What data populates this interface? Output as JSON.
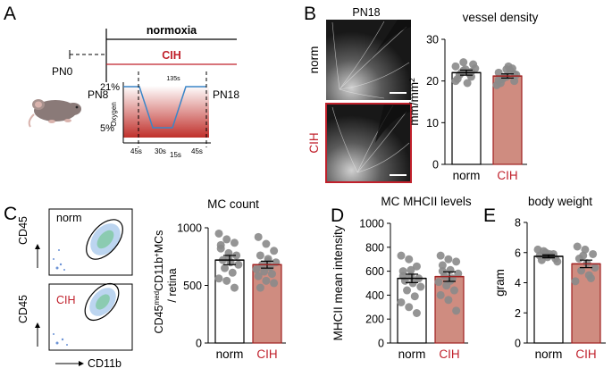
{
  "colors": {
    "norm_bar": "#ffffff",
    "cih_bar": "#cf8c80",
    "cih_text": "#c0202b",
    "point": "#8a8a8a",
    "oxygen_line": "#3a86c8",
    "gradient_top": "#ffffff",
    "gradient_bottom": "#c0302b"
  },
  "panels": {
    "A": {
      "letter": "A",
      "normoxia": "normoxia",
      "cih": "CIH",
      "pn0": "PN0",
      "pn8": "PN8",
      "pn18": "PN18",
      "oxygen_label": "Oxygen",
      "o2_high": "21%",
      "o2_low": "5%",
      "t_total": "135s",
      "t1": "45s",
      "t2": "30s",
      "t3": "15s",
      "t4": "45s",
      "mouse_icon": "mouse-icon"
    },
    "B": {
      "letter": "B",
      "image_title": "PN18",
      "norm_label": "norm",
      "cih_label": "CIH"
    },
    "C": {
      "letter": "C",
      "flow_top_label": "norm",
      "flow_bottom_label": "CIH",
      "cd45": "CD45",
      "cd11b": "CD11b"
    },
    "D": {
      "letter": "D"
    },
    "E": {
      "letter": "E"
    }
  },
  "chart_data": [
    {
      "id": "vessel-density",
      "type": "bar",
      "title": "vessel density",
      "ylabel": "mm/mm²",
      "categories": [
        "norm",
        "CIH"
      ],
      "values": [
        22.0,
        21.2
      ],
      "sem": [
        0.6,
        0.5
      ],
      "ylim": [
        0,
        30
      ],
      "yticks": [
        0,
        10,
        20,
        30
      ],
      "points": [
        [
          23.5,
          22.5,
          21.0,
          20.5,
          22.8,
          24.0,
          21.5,
          19.5,
          23.0,
          22.0,
          21.8,
          20.0,
          24.5,
          22.2
        ],
        [
          22.0,
          21.0,
          20.0,
          19.5,
          23.5,
          21.5,
          20.5,
          22.5,
          19.0,
          21.0,
          23.0,
          20.2,
          22.8,
          21.6
        ]
      ]
    },
    {
      "id": "mc-count",
      "type": "bar",
      "title": "MC count",
      "ylabel": "CD45medCD11b+MCs / retina",
      "categories": [
        "norm",
        "CIH"
      ],
      "values": [
        720,
        680
      ],
      "sem": [
        40,
        30
      ],
      "ylim": [
        0,
        1000
      ],
      "yticks": [
        0,
        500,
        1000
      ],
      "points": [
        [
          950,
          900,
          870,
          820,
          780,
          760,
          720,
          700,
          680,
          650,
          610,
          560,
          540,
          480,
          850,
          740
        ],
        [
          920,
          860,
          800,
          760,
          730,
          700,
          680,
          660,
          640,
          620,
          600,
          580,
          540,
          520,
          480,
          710
        ]
      ]
    },
    {
      "id": "mhcii-levels",
      "type": "bar",
      "title": "MC MHCII levels",
      "ylabel": "MHCII mean intensity",
      "categories": [
        "norm",
        "CIH"
      ],
      "values": [
        540,
        555
      ],
      "sem": [
        35,
        40
      ],
      "ylim": [
        0,
        1000
      ],
      "yticks": [
        0,
        200,
        400,
        600,
        800,
        1000
      ],
      "points": [
        [
          730,
          700,
          640,
          600,
          560,
          540,
          520,
          500,
          470,
          440,
          390,
          340,
          300,
          250,
          560,
          610
        ],
        [
          730,
          700,
          680,
          650,
          610,
          580,
          560,
          540,
          510,
          480,
          440,
          400,
          360,
          270,
          600,
          520
        ]
      ]
    },
    {
      "id": "body-weight",
      "type": "bar",
      "title": "body weight",
      "ylabel": "gram",
      "categories": [
        "norm",
        "CIH"
      ],
      "values": [
        5.75,
        5.25
      ],
      "sem": [
        0.1,
        0.25
      ],
      "ylim": [
        0,
        8
      ],
      "yticks": [
        0,
        2,
        4,
        6,
        8
      ],
      "points": [
        [
          6.2,
          6.0,
          5.9,
          5.8,
          5.7,
          5.6,
          5.5,
          5.9,
          5.4,
          6.1
        ],
        [
          6.4,
          6.2,
          5.9,
          5.6,
          5.3,
          5.0,
          4.8,
          4.5,
          4.1,
          5.8,
          4.3
        ]
      ]
    }
  ]
}
